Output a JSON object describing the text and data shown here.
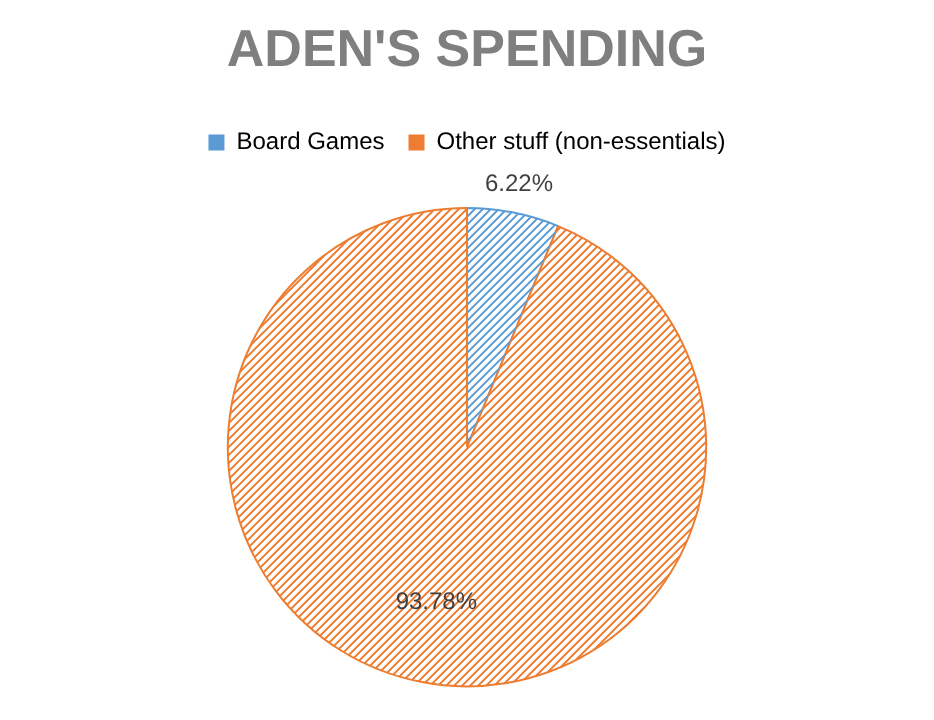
{
  "chart_data": {
    "type": "pie",
    "title": "ADEN'S SPENDING",
    "categories": [
      "Board Games",
      "Other stuff (non-essentials)"
    ],
    "values": [
      6.22,
      93.78
    ],
    "colors": [
      "#5b9bd5",
      "#ed7d31"
    ],
    "value_labels": [
      "6.22%",
      "93.78%"
    ],
    "legend": "top"
  }
}
